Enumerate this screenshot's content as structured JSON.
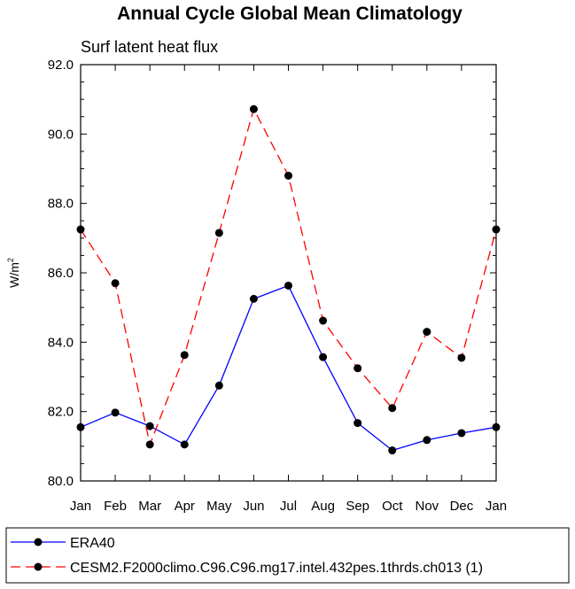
{
  "chart_data": {
    "type": "line",
    "title": "Annual Cycle Global Mean Climatology",
    "subtitle": "Surf latent heat flux",
    "ylabel": "W/m",
    "ylabel_superscript": "2",
    "ylim": [
      80.0,
      92.0
    ],
    "y_ticks": [
      "80.0",
      "82.0",
      "84.0",
      "86.0",
      "88.0",
      "90.0",
      "92.0"
    ],
    "y_tick_values": [
      80,
      82,
      84,
      86,
      88,
      90,
      92
    ],
    "categories": [
      "Jan",
      "Feb",
      "Mar",
      "Apr",
      "May",
      "Jun",
      "Jul",
      "Aug",
      "Sep",
      "Oct",
      "Nov",
      "Dec",
      "Jan"
    ],
    "series": [
      {
        "name": "ERA40",
        "color": "#0000ff",
        "dash": "solid",
        "values": [
          81.55,
          81.97,
          81.58,
          81.05,
          82.75,
          85.25,
          85.63,
          83.57,
          81.67,
          80.88,
          81.18,
          81.38,
          81.55
        ]
      },
      {
        "name": "CESM2.F2000climo.C96.C96.mg17.intel.432pes.1thrds.ch013 (1)",
        "color": "#ff0000",
        "dash": "dashed",
        "values": [
          87.25,
          85.7,
          81.05,
          83.63,
          87.15,
          90.72,
          88.8,
          84.62,
          83.25,
          82.1,
          84.3,
          83.55,
          87.25
        ]
      }
    ],
    "legend_position": "bottom"
  }
}
